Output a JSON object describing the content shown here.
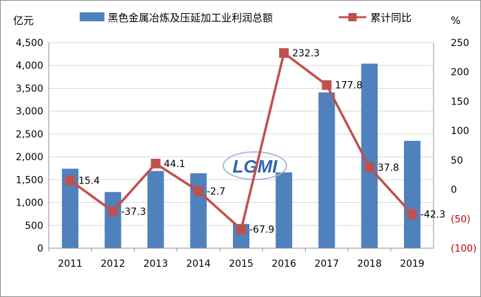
{
  "chart_data": {
    "type": "bar+line",
    "left_unit": "亿元",
    "right_unit": "%",
    "categories": [
      "2011",
      "2012",
      "2013",
      "2014",
      "2015",
      "2016",
      "2017",
      "2018",
      "2019"
    ],
    "bar_series": {
      "name": "黑色金属冶炼及压延加工业利润总额",
      "color": "#4f81bd",
      "values": [
        1740,
        1230,
        1690,
        1640,
        530,
        1660,
        3410,
        4040,
        2350
      ]
    },
    "line_series": {
      "name": "累计同比",
      "color": "#c0504d",
      "values": [
        15.4,
        -37.3,
        44.1,
        -2.7,
        -67.9,
        232.3,
        177.8,
        37.8,
        -42.3
      ],
      "labels": [
        "15.4",
        "-37.3",
        "44.1",
        "-2.7",
        "-67.9",
        "232.3",
        "177.8",
        "37.8",
        "-42.3"
      ]
    },
    "left_axis": {
      "min": 0,
      "max": 4500,
      "step": 500,
      "ticks": [
        "0",
        "500",
        "1,000",
        "1,500",
        "2,000",
        "2,500",
        "3,000",
        "3,500",
        "4,000",
        "4,500"
      ]
    },
    "right_axis": {
      "min": -100,
      "max": 250,
      "step": 50,
      "ticks": [
        "(100)",
        "(50)",
        "0",
        "50",
        "100",
        "150",
        "200",
        "250"
      ]
    },
    "legend_position": "top",
    "grid": "horizontal"
  },
  "watermark": {
    "text": "LGMI"
  }
}
